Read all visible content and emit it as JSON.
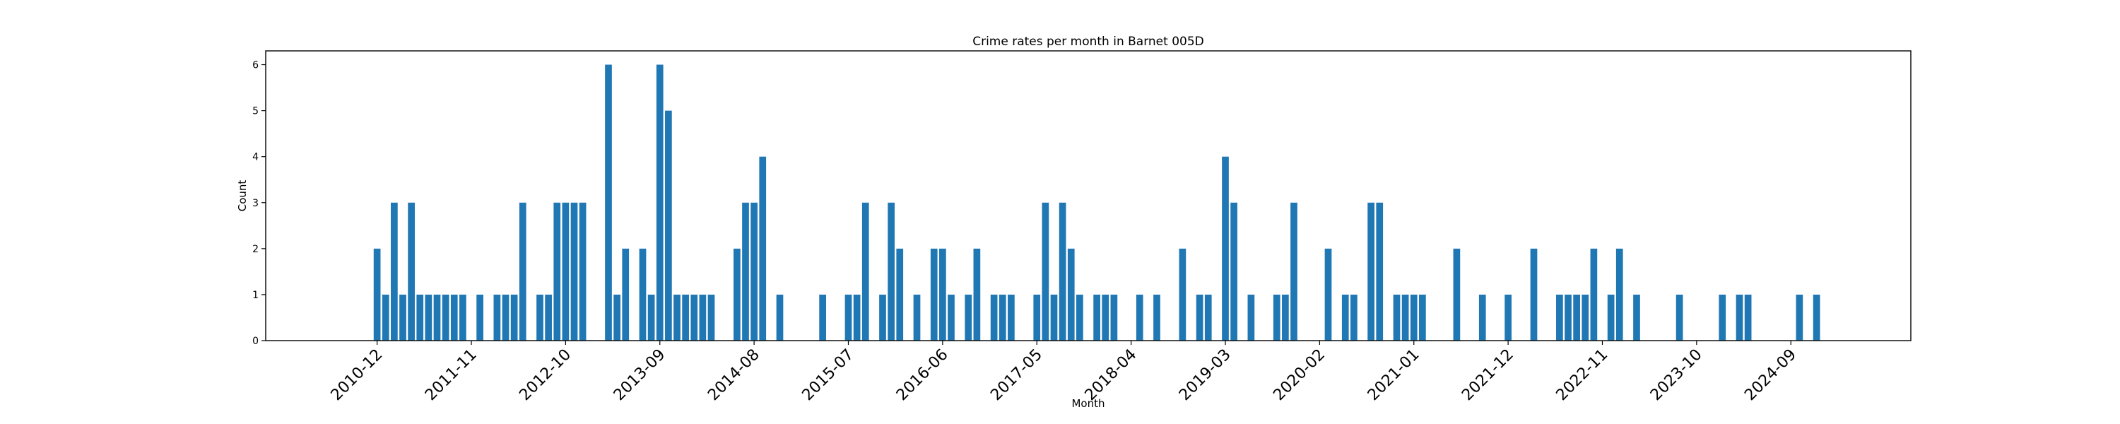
{
  "chart_data": {
    "type": "bar",
    "title": "Crime rates per month in Barnet 005D",
    "xlabel": "Month",
    "ylabel": "Count",
    "ylim": [
      0,
      6.3
    ],
    "yticks": [
      0,
      1,
      2,
      3,
      4,
      5,
      6
    ],
    "xlim": [
      "2009-11",
      "2025-11"
    ],
    "xticks": [
      "2010-12",
      "2011-11",
      "2012-10",
      "2013-09",
      "2014-08",
      "2015-07",
      "2016-06",
      "2017-05",
      "2018-04",
      "2019-03",
      "2020-02",
      "2021-01",
      "2021-12",
      "2022-11",
      "2023-10",
      "2024-09"
    ],
    "bar_color": "#1f77b4",
    "grid": false,
    "categories": [
      "2010-12",
      "2011-01",
      "2011-02",
      "2011-03",
      "2011-04",
      "2011-05",
      "2011-06",
      "2011-07",
      "2011-08",
      "2011-09",
      "2011-10",
      "2011-12",
      "2012-02",
      "2012-03",
      "2012-04",
      "2012-05",
      "2012-07",
      "2012-08",
      "2012-09",
      "2012-10",
      "2012-11",
      "2012-12",
      "2013-03",
      "2013-04",
      "2013-05",
      "2013-07",
      "2013-08",
      "2013-09",
      "2013-10",
      "2013-11",
      "2013-12",
      "2014-01",
      "2014-02",
      "2014-03",
      "2014-06",
      "2014-07",
      "2014-08",
      "2014-09",
      "2014-11",
      "2015-04",
      "2015-07",
      "2015-08",
      "2015-09",
      "2015-11",
      "2015-12",
      "2016-01",
      "2016-03",
      "2016-05",
      "2016-06",
      "2016-07",
      "2016-09",
      "2016-10",
      "2016-12",
      "2017-01",
      "2017-02",
      "2017-05",
      "2017-06",
      "2017-07",
      "2017-08",
      "2017-09",
      "2017-10",
      "2017-12",
      "2018-01",
      "2018-02",
      "2018-05",
      "2018-07",
      "2018-10",
      "2018-12",
      "2019-01",
      "2019-03",
      "2019-04",
      "2019-06",
      "2019-09",
      "2019-10",
      "2019-11",
      "2020-03",
      "2020-05",
      "2020-06",
      "2020-08",
      "2020-09",
      "2020-11",
      "2020-12",
      "2021-01",
      "2021-02",
      "2021-06",
      "2021-09",
      "2021-12",
      "2022-03",
      "2022-06",
      "2022-07",
      "2022-08",
      "2022-09",
      "2022-10",
      "2022-12",
      "2023-01",
      "2023-03",
      "2023-08",
      "2024-01",
      "2024-03",
      "2024-04",
      "2024-10",
      "2024-12"
    ],
    "values": [
      2,
      1,
      3,
      1,
      3,
      1,
      1,
      1,
      1,
      1,
      1,
      1,
      1,
      1,
      1,
      3,
      1,
      1,
      3,
      3,
      3,
      3,
      6,
      1,
      2,
      2,
      1,
      6,
      5,
      1,
      1,
      1,
      1,
      1,
      2,
      3,
      3,
      4,
      1,
      1,
      1,
      1,
      3,
      1,
      3,
      2,
      1,
      2,
      2,
      1,
      1,
      2,
      1,
      1,
      1,
      1,
      3,
      1,
      3,
      2,
      1,
      1,
      1,
      1,
      1,
      1,
      2,
      1,
      1,
      4,
      3,
      1,
      1,
      1,
      3,
      2,
      1,
      1,
      3,
      3,
      1,
      1,
      1,
      1,
      2,
      1,
      1,
      2,
      1,
      1,
      1,
      1,
      2,
      1,
      2,
      1,
      1,
      1,
      1,
      1,
      1,
      1
    ]
  }
}
